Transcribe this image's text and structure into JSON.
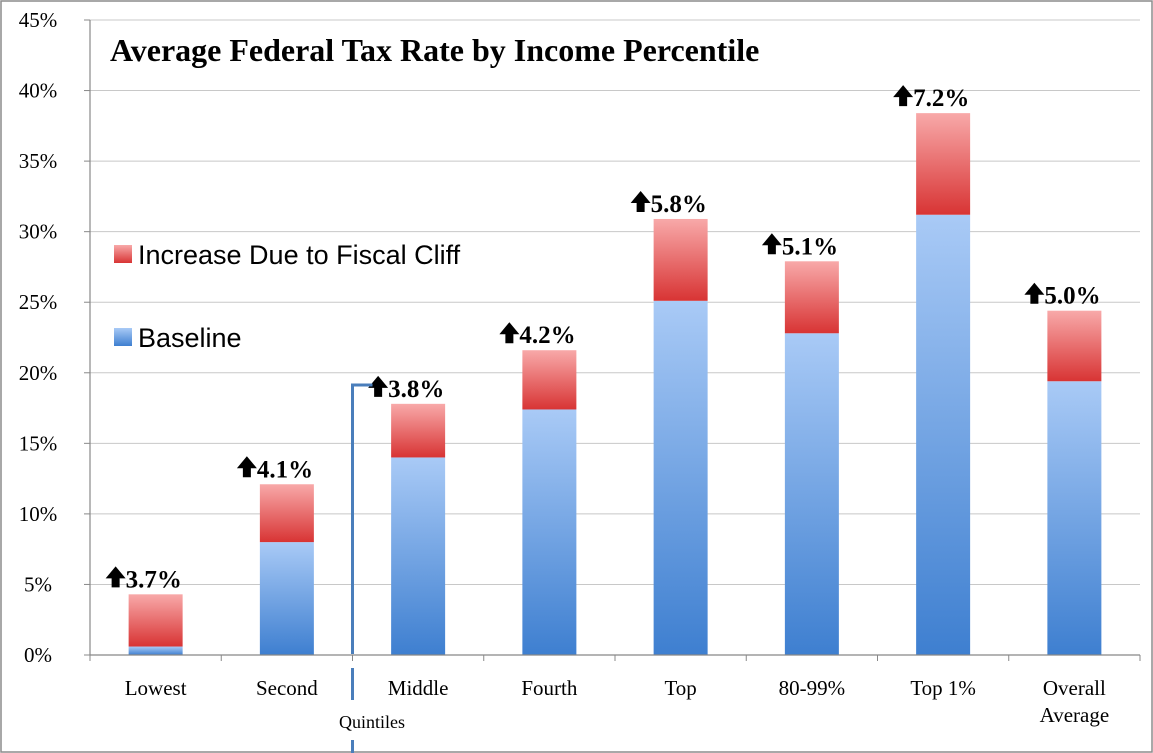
{
  "chart_data": {
    "type": "bar",
    "stacked": true,
    "title": "Average Federal Tax Rate by Income Percentile",
    "categories": [
      [
        "Lowest"
      ],
      [
        "Second"
      ],
      [
        "Middle"
      ],
      [
        "Fourth"
      ],
      [
        "Top"
      ],
      [
        "80-99%"
      ],
      [
        "Top 1%"
      ],
      [
        "Overall",
        "Average"
      ]
    ],
    "group_label": "Quintiles",
    "series": [
      {
        "name": "Baseline",
        "values": [
          0.6,
          8.0,
          14.0,
          17.4,
          25.1,
          22.8,
          31.2,
          19.4
        ],
        "color_top": "#a9caf6",
        "color_bottom": "#3e7fd0"
      },
      {
        "name": "Increase Due to Fiscal Cliff",
        "values": [
          3.7,
          4.1,
          3.8,
          4.2,
          5.8,
          5.1,
          7.2,
          5.0
        ],
        "color_top": "#f8a9a9",
        "color_bottom": "#d83434"
      }
    ],
    "data_labels": [
      "3.7%",
      "4.1%",
      "3.8%",
      "4.2%",
      "5.8%",
      "5.1%",
      "7.2%",
      "5.0%"
    ],
    "y_ticks": [
      "0%",
      "5%",
      "10%",
      "15%",
      "20%",
      "25%",
      "30%",
      "35%",
      "40%",
      "45%"
    ],
    "ylim": [
      0,
      45
    ],
    "grid": true,
    "legend_position": "left",
    "annotation_icon": "up-arrow-icon"
  }
}
